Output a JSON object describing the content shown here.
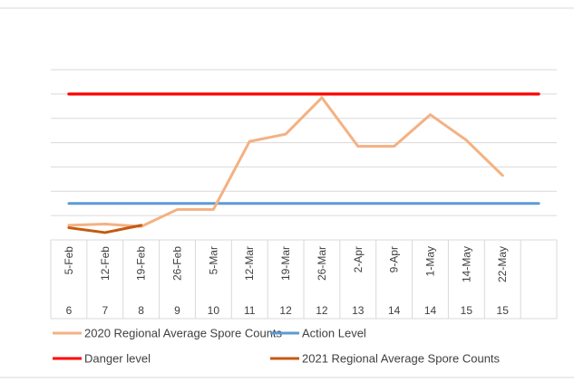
{
  "chart_data": {
    "type": "line",
    "categories": [
      "5-Feb",
      "12-Feb",
      "19-Feb",
      "26-Feb",
      "5-Mar",
      "12-Mar",
      "19-Mar",
      "26-Mar",
      "2-Apr",
      "9-Apr",
      "1-May",
      "14-May",
      "22-May",
      ""
    ],
    "week_numbers": [
      "6",
      "7",
      "8",
      "9",
      "10",
      "11",
      "12",
      "12",
      "13",
      "14",
      "14",
      "15",
      "15",
      ""
    ],
    "title": "",
    "xlabel": "",
    "ylabel": "",
    "grid": true,
    "y_gridlines": 7,
    "legend_position": "bottom",
    "series": [
      {
        "name": "2020 Regional Average Spore Counts",
        "color": "#F4B183",
        "values": [
          0.6,
          0.65,
          0.55,
          1.25,
          1.25,
          4.05,
          4.35,
          5.85,
          3.85,
          3.85,
          5.15,
          4.1,
          2.65,
          null
        ]
      },
      {
        "name": "Action Level",
        "color": "#5B9BD5",
        "values": [
          1.5,
          1.5,
          1.5,
          1.5,
          1.5,
          1.5,
          1.5,
          1.5,
          1.5,
          1.5,
          1.5,
          1.5,
          1.5,
          1.5
        ]
      },
      {
        "name": "Danger level",
        "color": "#FF0000",
        "values": [
          6.0,
          6.0,
          6.0,
          6.0,
          6.0,
          6.0,
          6.0,
          6.0,
          6.0,
          6.0,
          6.0,
          6.0,
          6.0,
          6.0
        ]
      },
      {
        "name": "2021 Regional Average Spore Counts",
        "color": "#C55A11",
        "values": [
          0.5,
          0.3,
          0.6,
          null,
          null,
          null,
          null,
          null,
          null,
          null,
          null,
          null,
          null,
          null
        ]
      }
    ]
  }
}
